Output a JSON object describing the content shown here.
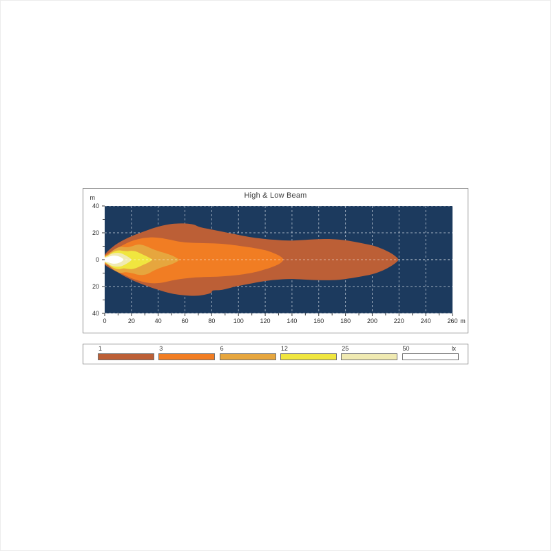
{
  "chart_data": {
    "type": "area",
    "subtype": "isolux-contour-map",
    "title": "High & Low Beam",
    "x_unit": "m",
    "y_unit": "m",
    "xlim": [
      0,
      260
    ],
    "ylim": [
      -40,
      40
    ],
    "grid": true,
    "background_color": "#1c3a5e",
    "grid_color": "rgba(235,240,245,0.65)",
    "axis_text_color": "#2b2b2b",
    "x_ticks_major": [
      0,
      20,
      40,
      60,
      80,
      100,
      120,
      140,
      160,
      180,
      200,
      220,
      240,
      260
    ],
    "x_ticks_minor": [
      10,
      30,
      50,
      70,
      90,
      110,
      130,
      150,
      170,
      190,
      210,
      230,
      250
    ],
    "y_ticks_major": [
      40,
      20,
      0,
      -20,
      -40
    ],
    "y_tick_labels": [
      "40",
      "20",
      "0",
      "20",
      "40"
    ],
    "y_ticks_minor": [
      30,
      10,
      -10,
      -30
    ],
    "gridlines_x": [
      20,
      40,
      60,
      80,
      100,
      120,
      140,
      160,
      180,
      200,
      220,
      240
    ],
    "gridlines_y": [
      40,
      20,
      0,
      -20,
      -40
    ],
    "centerline_y": 0,
    "series": [
      {
        "name": "1 lx",
        "value": 1,
        "color": "#bc5f36",
        "points": [
          [
            0,
            3.5
          ],
          [
            8,
            11
          ],
          [
            18,
            16.5
          ],
          [
            28,
            20.5
          ],
          [
            38,
            24
          ],
          [
            48,
            26.3
          ],
          [
            58,
            27
          ],
          [
            66,
            26.2
          ],
          [
            71,
            24.3
          ],
          [
            78,
            22.8
          ],
          [
            88,
            20.8
          ],
          [
            98,
            18.8
          ],
          [
            108,
            16.9
          ],
          [
            118,
            15.6
          ],
          [
            128,
            14.7
          ],
          [
            138,
            14.2
          ],
          [
            148,
            14.6
          ],
          [
            158,
            15.2
          ],
          [
            170,
            15.3
          ],
          [
            180,
            14.4
          ],
          [
            190,
            12.7
          ],
          [
            200,
            10.6
          ],
          [
            208,
            7.8
          ],
          [
            214,
            4.8
          ],
          [
            218,
            2
          ],
          [
            219.5,
            0
          ],
          [
            218,
            -2
          ],
          [
            214,
            -4.8
          ],
          [
            208,
            -8
          ],
          [
            200,
            -10.8
          ],
          [
            190,
            -12.8
          ],
          [
            180,
            -14.4
          ],
          [
            170,
            -15.3
          ],
          [
            158,
            -15.2
          ],
          [
            148,
            -14.7
          ],
          [
            138,
            -14.4
          ],
          [
            128,
            -15
          ],
          [
            118,
            -16.2
          ],
          [
            108,
            -18
          ],
          [
            98,
            -20
          ],
          [
            88,
            -22.4
          ],
          [
            81,
            -23
          ],
          [
            79,
            -25
          ],
          [
            70,
            -26.8
          ],
          [
            60,
            -26.6
          ],
          [
            50,
            -25.2
          ],
          [
            40,
            -22.4
          ],
          [
            30,
            -19
          ],
          [
            20,
            -15
          ],
          [
            10,
            -9.6
          ],
          [
            0,
            -3.5
          ]
        ]
      },
      {
        "name": "3 lx",
        "value": 3,
        "color": "#f17d23",
        "points": [
          [
            0,
            2.6
          ],
          [
            6,
            6.6
          ],
          [
            12,
            10
          ],
          [
            18,
            13
          ],
          [
            24,
            15
          ],
          [
            30,
            16.2
          ],
          [
            36,
            16.6
          ],
          [
            42,
            16.1
          ],
          [
            48,
            15
          ],
          [
            56,
            13.4
          ],
          [
            64,
            12.6
          ],
          [
            74,
            12.3
          ],
          [
            84,
            12
          ],
          [
            94,
            11.2
          ],
          [
            104,
            9.8
          ],
          [
            112,
            8.6
          ],
          [
            120,
            7
          ],
          [
            126,
            5
          ],
          [
            131,
            2.6
          ],
          [
            133.5,
            0
          ],
          [
            131,
            -2.8
          ],
          [
            126,
            -5.2
          ],
          [
            120,
            -7.2
          ],
          [
            112,
            -9.4
          ],
          [
            104,
            -10.8
          ],
          [
            94,
            -12
          ],
          [
            84,
            -12.7
          ],
          [
            74,
            -13
          ],
          [
            66,
            -13.4
          ],
          [
            58,
            -14.2
          ],
          [
            50,
            -15.6
          ],
          [
            44,
            -16.9
          ],
          [
            38,
            -17.6
          ],
          [
            32,
            -17.2
          ],
          [
            26,
            -15.8
          ],
          [
            20,
            -13.8
          ],
          [
            14,
            -11
          ],
          [
            8,
            -7.8
          ],
          [
            3,
            -4.4
          ],
          [
            0,
            -2.6
          ]
        ]
      },
      {
        "name": "6 lx",
        "value": 6,
        "color": "#e6a63e",
        "points": [
          [
            0,
            2.2
          ],
          [
            3,
            4.2
          ],
          [
            6,
            6.8
          ],
          [
            9,
            8.6
          ],
          [
            12,
            9.6
          ],
          [
            15,
            9.3
          ],
          [
            18,
            9.4
          ],
          [
            21,
            10.2
          ],
          [
            24,
            11.1
          ],
          [
            27,
            11.2
          ],
          [
            30,
            10.4
          ],
          [
            33,
            9.2
          ],
          [
            36,
            7.8
          ],
          [
            40,
            6.4
          ],
          [
            45,
            4.9
          ],
          [
            50,
            3.2
          ],
          [
            54,
            1.2
          ],
          [
            55.5,
            0
          ],
          [
            54,
            -1.5
          ],
          [
            50,
            -3.4
          ],
          [
            45,
            -5
          ],
          [
            40,
            -6.7
          ],
          [
            36,
            -8.5
          ],
          [
            33,
            -10.2
          ],
          [
            30,
            -11.2
          ],
          [
            27,
            -11.4
          ],
          [
            24,
            -11
          ],
          [
            21,
            -10.2
          ],
          [
            18,
            -9.6
          ],
          [
            15,
            -9.4
          ],
          [
            12,
            -9.9
          ],
          [
            9,
            -8.8
          ],
          [
            6,
            -7
          ],
          [
            3,
            -4.4
          ],
          [
            0,
            -2.2
          ]
        ]
      },
      {
        "name": "12 lx",
        "value": 12,
        "color": "#f0e63f",
        "points": [
          [
            0,
            1.8
          ],
          [
            2.5,
            3.2
          ],
          [
            5,
            5
          ],
          [
            8,
            6.4
          ],
          [
            11,
            6.9
          ],
          [
            14,
            6.5
          ],
          [
            17,
            6.3
          ],
          [
            20,
            6.6
          ],
          [
            23,
            6.2
          ],
          [
            26,
            5
          ],
          [
            29,
            3.6
          ],
          [
            32,
            2.2
          ],
          [
            34.5,
            0.8
          ],
          [
            35.5,
            0
          ],
          [
            34.5,
            -1
          ],
          [
            32,
            -2.4
          ],
          [
            29,
            -3.8
          ],
          [
            26,
            -5.2
          ],
          [
            23,
            -6.4
          ],
          [
            20,
            -7
          ],
          [
            17,
            -6.8
          ],
          [
            14,
            -6.5
          ],
          [
            11,
            -7
          ],
          [
            8,
            -6.6
          ],
          [
            5,
            -5.2
          ],
          [
            2.5,
            -3.4
          ],
          [
            0,
            -1.8
          ]
        ]
      },
      {
        "name": "25 lx",
        "value": 25,
        "color": "#f0eab2",
        "points": [
          [
            0,
            1.5
          ],
          [
            2,
            2.6
          ],
          [
            4,
            3.8
          ],
          [
            6,
            4.6
          ],
          [
            9,
            5.1
          ],
          [
            12,
            4.8
          ],
          [
            14,
            4
          ],
          [
            16,
            3
          ],
          [
            18,
            1.8
          ],
          [
            19.5,
            0.6
          ],
          [
            20,
            0
          ],
          [
            19.5,
            -0.8
          ],
          [
            18,
            -2
          ],
          [
            16,
            -3.2
          ],
          [
            14,
            -4.2
          ],
          [
            12,
            -5
          ],
          [
            9,
            -5.2
          ],
          [
            6,
            -4.8
          ],
          [
            4,
            -4
          ],
          [
            2,
            -2.8
          ],
          [
            0,
            -1.5
          ]
        ]
      },
      {
        "name": "50 lx",
        "value": 50,
        "color": "#ffffff",
        "points": [
          [
            0,
            1.1
          ],
          [
            2,
            1.8
          ],
          [
            4,
            2.5
          ],
          [
            6,
            2.9
          ],
          [
            8,
            3
          ],
          [
            10,
            2.6
          ],
          [
            12,
            1.8
          ],
          [
            13.5,
            0.8
          ],
          [
            14,
            0
          ],
          [
            13.5,
            -0.8
          ],
          [
            12,
            -1.8
          ],
          [
            10,
            -2.6
          ],
          [
            8,
            -3
          ],
          [
            6,
            -2.9
          ],
          [
            4,
            -2.5
          ],
          [
            2,
            -1.8
          ],
          [
            0,
            -1.1
          ]
        ]
      }
    ],
    "legend": {
      "position": "bottom",
      "unit": "lx",
      "entries": [
        {
          "label": "1",
          "color": "#bc5f36"
        },
        {
          "label": "3",
          "color": "#f17d23"
        },
        {
          "label": "6",
          "color": "#e6a63e"
        },
        {
          "label": "12",
          "color": "#f0e63f"
        },
        {
          "label": "25",
          "color": "#f0eab2"
        },
        {
          "label": "50",
          "color": "#ffffff"
        }
      ]
    }
  }
}
